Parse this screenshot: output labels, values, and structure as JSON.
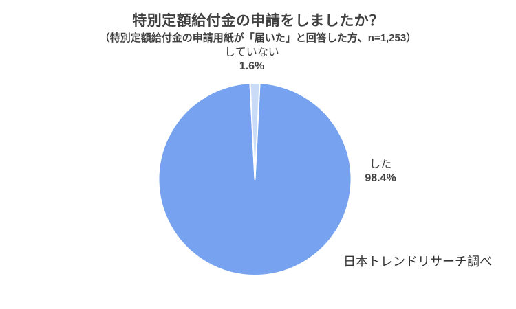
{
  "chart_data": {
    "type": "pie",
    "title": "特別定額給付金の申請をしましたか？",
    "subtitle": "（特別定額給付金の申請用紙が「届いた」と回答した方、n=1,253）",
    "sample_size": "n=1,253",
    "categories": [
      "した",
      "していない"
    ],
    "values": [
      98.4,
      1.6
    ],
    "unit": "%",
    "labels": [
      {
        "name": "した",
        "value_text": "98.4%"
      },
      {
        "name": "していない",
        "value_text": "1.6%"
      }
    ],
    "colors": [
      "#76a2ef",
      "#c9dbf6"
    ],
    "slice_border_color": "#ffffff",
    "legend": "none",
    "start_layout": "small-slice-centered-at-top",
    "source": "日本トレンドリサーチ調べ",
    "text_color": "#404040",
    "background": "#ffffff"
  }
}
